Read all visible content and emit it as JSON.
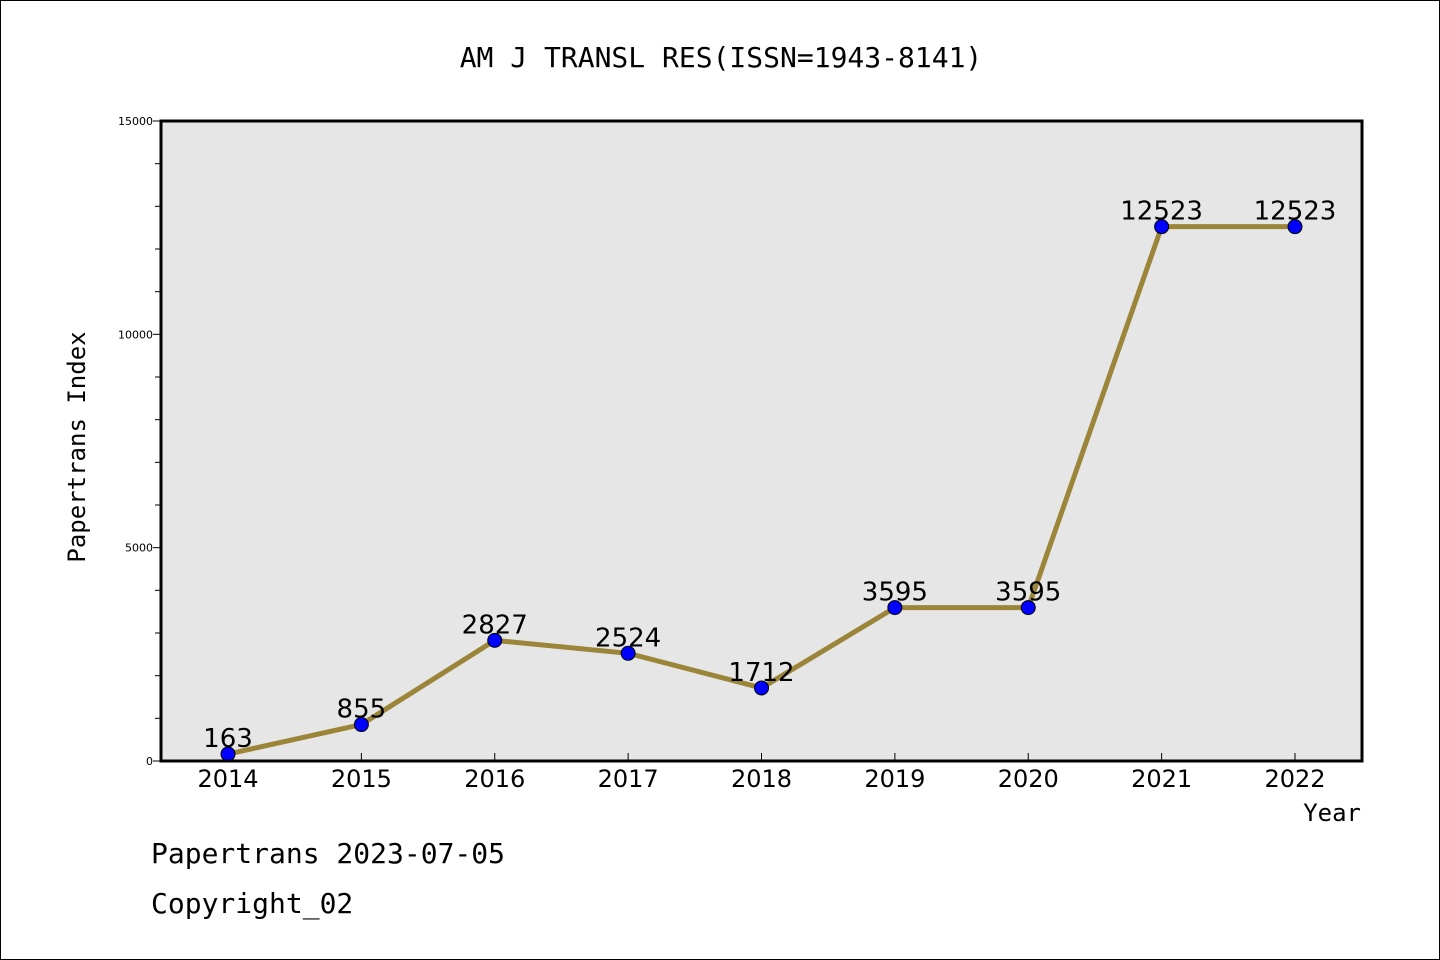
{
  "chart_data": {
    "type": "line",
    "title": "AM J TRANSL RES(ISSN=1943-8141)",
    "xlabel": "Year",
    "ylabel": "Papertrans Index",
    "categories": [
      "2014",
      "2015",
      "2016",
      "2017",
      "2018",
      "2019",
      "2020",
      "2021",
      "2022"
    ],
    "series": [
      {
        "values": [
          163,
          855,
          2827,
          2524,
          1712,
          3595,
          3595,
          12523,
          12523
        ]
      }
    ],
    "ylim": [
      0,
      15000
    ],
    "yticks": [
      "0",
      "5000",
      "10000",
      "15000"
    ],
    "grid": false,
    "colors": {
      "line": "#9b8539",
      "marker": "#0000ff",
      "plot_background": "#e6e6e6"
    }
  },
  "footer": {
    "line1": "Papertrans 2023-07-05",
    "line2": "Copyright_02"
  }
}
